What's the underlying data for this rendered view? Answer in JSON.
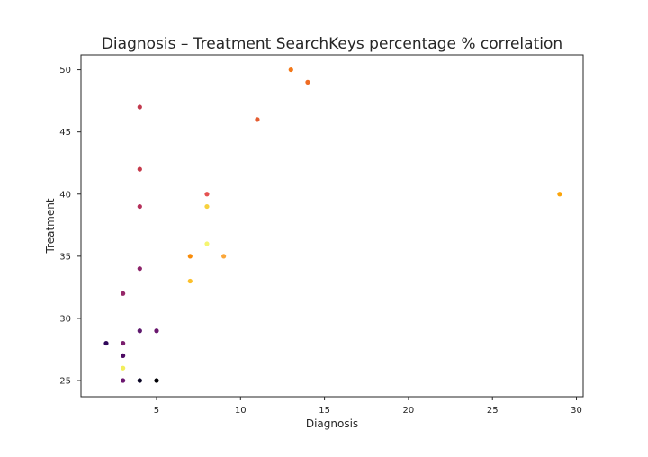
{
  "chart_data": {
    "type": "scatter",
    "title": "Diagnosis – Treatment SearchKeys percentage % correlation",
    "xlabel": "Diagnosis",
    "ylabel": "Treatment",
    "xlim": [
      0.5,
      30.4
    ],
    "ylim": [
      23.7,
      51.2
    ],
    "x_ticks": [
      5,
      10,
      15,
      20,
      25,
      30
    ],
    "y_ticks": [
      25,
      30,
      35,
      40,
      45,
      50
    ],
    "grid": false,
    "legend": "none",
    "points": [
      {
        "x": 13,
        "y": 50,
        "color": "#f37819"
      },
      {
        "x": 14,
        "y": 49,
        "color": "#ef6c23"
      },
      {
        "x": 4,
        "y": 47,
        "color": "#c23a4e"
      },
      {
        "x": 11,
        "y": 46,
        "color": "#e55c30"
      },
      {
        "x": 4,
        "y": 42,
        "color": "#c53a4b"
      },
      {
        "x": 8,
        "y": 40,
        "color": "#e55150"
      },
      {
        "x": 29,
        "y": 40,
        "color": "#fba40a"
      },
      {
        "x": 4,
        "y": 39,
        "color": "#b5305b"
      },
      {
        "x": 8,
        "y": 39,
        "color": "#f7d13d"
      },
      {
        "x": 8,
        "y": 36,
        "color": "#f5f570"
      },
      {
        "x": 7,
        "y": 35,
        "color": "#f98c0a"
      },
      {
        "x": 9,
        "y": 35,
        "color": "#fba73a"
      },
      {
        "x": 4,
        "y": 34,
        "color": "#8c2369"
      },
      {
        "x": 7,
        "y": 33,
        "color": "#fcc02a"
      },
      {
        "x": 3,
        "y": 32,
        "color": "#962769"
      },
      {
        "x": 4,
        "y": 29,
        "color": "#5e1a6e"
      },
      {
        "x": 5,
        "y": 29,
        "color": "#6a176e"
      },
      {
        "x": 2,
        "y": 28,
        "color": "#30085a"
      },
      {
        "x": 3,
        "y": 28,
        "color": "#7a1d6d"
      },
      {
        "x": 3,
        "y": 27,
        "color": "#4d0b63"
      },
      {
        "x": 3,
        "y": 26,
        "color": "#f2ee5b"
      },
      {
        "x": 3,
        "y": 25,
        "color": "#6c1870"
      },
      {
        "x": 4,
        "y": 25,
        "color": "#0a0524"
      },
      {
        "x": 5,
        "y": 25,
        "color": "#000004"
      }
    ]
  }
}
